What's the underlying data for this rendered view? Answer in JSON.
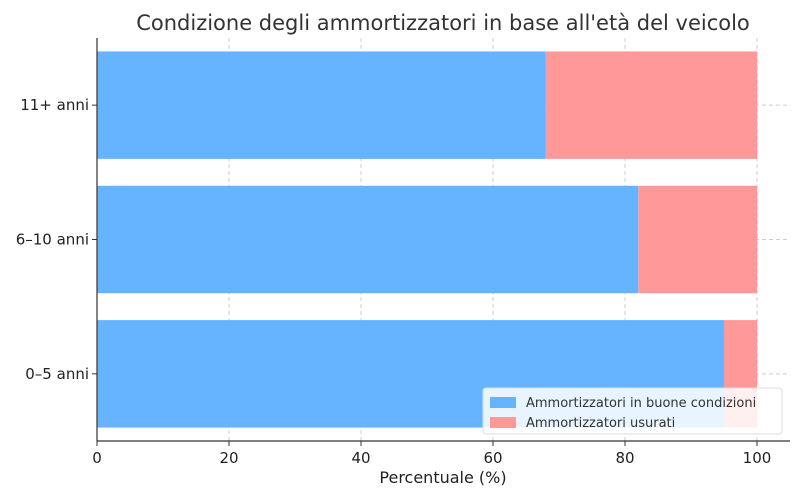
{
  "chart_data": {
    "type": "bar",
    "orientation": "horizontal",
    "stacked": true,
    "title": "Condizione degli ammortizzatori in base all'età del veicolo",
    "xlabel": "Percentuale (%)",
    "ylabel": "",
    "categories": [
      "0–5 anni",
      "6–10 anni",
      "11+ anni"
    ],
    "series": [
      {
        "name": "Ammortizzatori in buone condizioni",
        "values": [
          95,
          82,
          68
        ],
        "color": "#66b3ff"
      },
      {
        "name": "Ammortizzatori usurati",
        "values": [
          5,
          18,
          32
        ],
        "color": "#ff9999"
      }
    ],
    "xlim": [
      0,
      105
    ],
    "xticks": [
      "0",
      "20",
      "40",
      "60",
      "80",
      "100"
    ],
    "grid": true,
    "legend_position": "lower-right"
  }
}
